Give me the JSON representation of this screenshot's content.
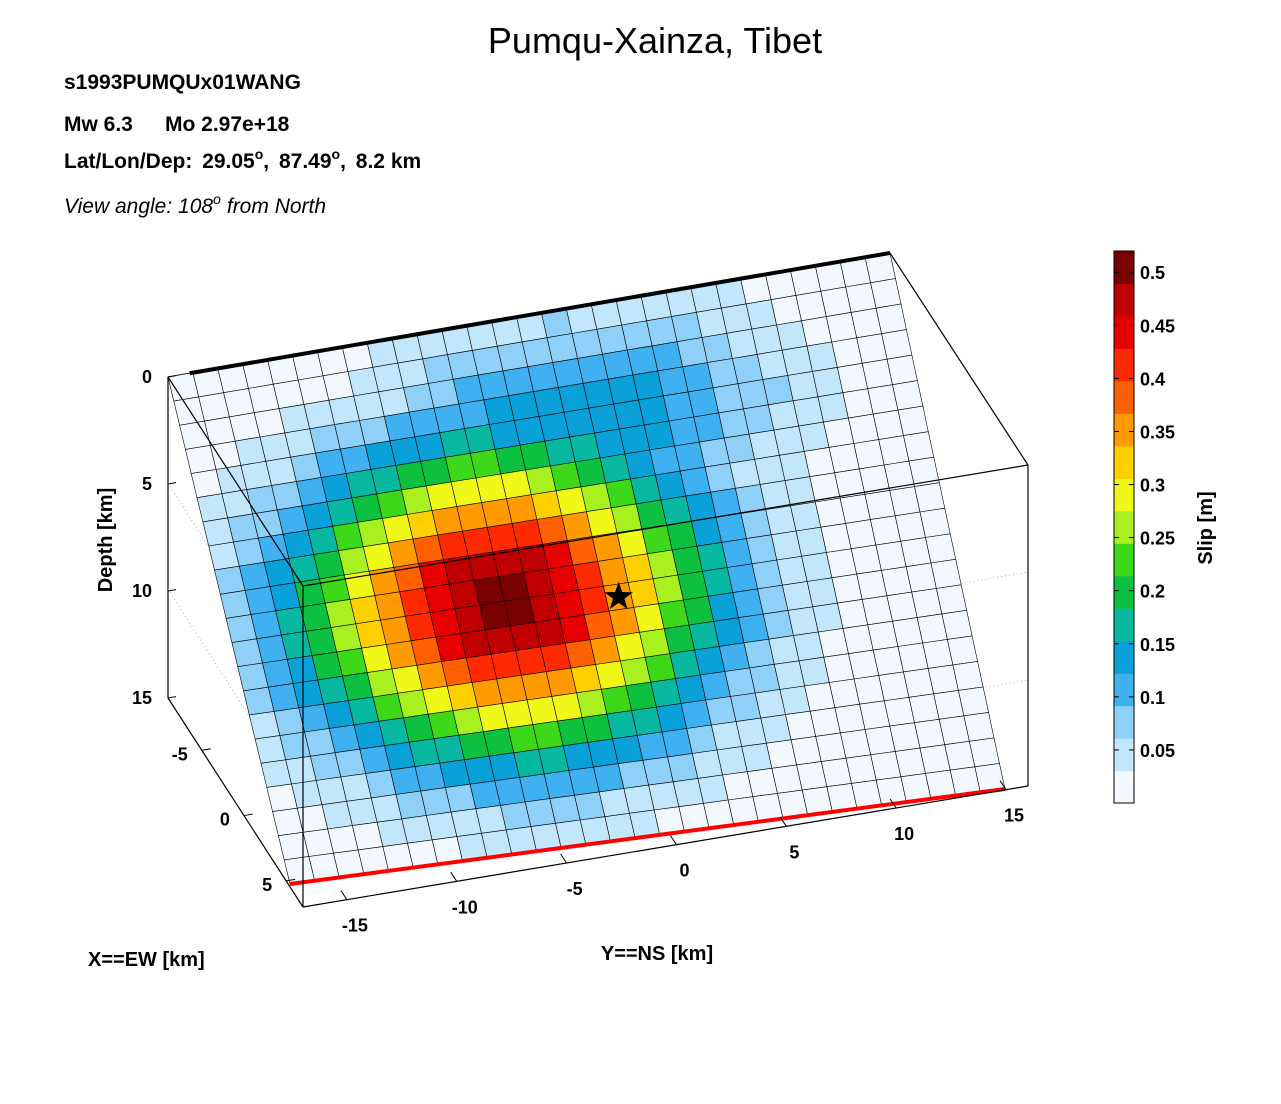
{
  "header": {
    "title": "Pumqu-Xainza, Tibet",
    "event_id": "s1993PUMQUx01WANG",
    "magnitude": "Mw 6.3",
    "moment": "Mo 2.97e+18",
    "location_label": "Lat/Lon/Dep:",
    "lat": "29.05",
    "lon": "87.49",
    "depth": "8.2 km",
    "view_prefix": "View angle: 108",
    "view_suffix": "from North",
    "degree_symbol": "o"
  },
  "chart_data": {
    "type": "heatmap",
    "title": "Pumqu-Xainza, Tibet",
    "view_angle_deg": 108,
    "axes": {
      "x": {
        "label": "X==EW [km]",
        "ticks": [
          "-5",
          "0",
          "5"
        ],
        "tick_values": [
          -5,
          0,
          5
        ]
      },
      "y": {
        "label": "Y==NS [km]",
        "ticks": [
          "-15",
          "-10",
          "-5",
          "0",
          "5",
          "10",
          "15"
        ],
        "tick_values": [
          -15,
          -10,
          -5,
          0,
          5,
          10,
          15
        ]
      },
      "z": {
        "label": "Depth [km]",
        "ticks": [
          "0",
          "5",
          "10",
          "15"
        ],
        "tick_values": [
          0,
          5,
          10,
          15
        ]
      }
    },
    "colorbar": {
      "label": "Slip [m]",
      "ticks": [
        "0.05",
        "0.1",
        "0.15",
        "0.2",
        "0.25",
        "0.3",
        "0.35",
        "0.4",
        "0.45",
        "0.5"
      ],
      "tick_values": [
        0.05,
        0.1,
        0.15,
        0.2,
        0.25,
        0.3,
        0.35,
        0.4,
        0.45,
        0.5
      ],
      "range": [
        0,
        0.52
      ]
    },
    "grid": {
      "cols": 29,
      "rows": 21
    },
    "slip_model": {
      "peak_slip": 0.51,
      "peak_col": 10.5,
      "peak_row": 10.5,
      "sigma_cols": 5.5,
      "sigma_rows": 4.2,
      "upper_patch": {
        "value": 0.15,
        "col": 15,
        "row": 4,
        "sigma_cols": 6,
        "sigma_rows": 3
      }
    },
    "hypocenter": {
      "col": 15,
      "row": 11
    },
    "fault_top_trace_color": "#000000",
    "surface_trace_color": "#ff0000",
    "colors": [
      "#f2f8fe",
      "#c2e6fc",
      "#8fd0f8",
      "#3fb0f0",
      "#0aa0d8",
      "#08b8a0",
      "#0ec040",
      "#3ed81a",
      "#a8f020",
      "#f0f818",
      "#ffd000",
      "#ff9a00",
      "#ff6000",
      "#ff2a00",
      "#e80000",
      "#c00000",
      "#7a0000"
    ]
  }
}
